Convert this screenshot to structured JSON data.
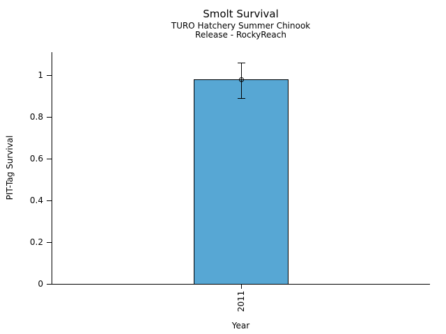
{
  "chart_data": {
    "type": "bar",
    "title": "Smolt Survival",
    "subtitle1": "TURO Hatchery Summer Chinook",
    "subtitle2": "Release - RockyReach",
    "xlabel": "Year",
    "ylabel": "PIT-Tag Survival",
    "categories": [
      "2011"
    ],
    "series": [
      {
        "name": "PIT-Tag Survival",
        "values": [
          0.98
        ]
      }
    ],
    "error_bars": [
      {
        "low": 0.89,
        "high": 1.06
      }
    ],
    "yticks": [
      0,
      0.2,
      0.4,
      0.6,
      0.8,
      1
    ],
    "ylim": [
      0,
      1.11
    ],
    "grid": "off",
    "legend": "none",
    "bar_color": "#57A7D4",
    "bar_border_color": "#000000",
    "axis_color": "#000000",
    "text_color": "#000000",
    "background_color": "#FFFFFF"
  }
}
